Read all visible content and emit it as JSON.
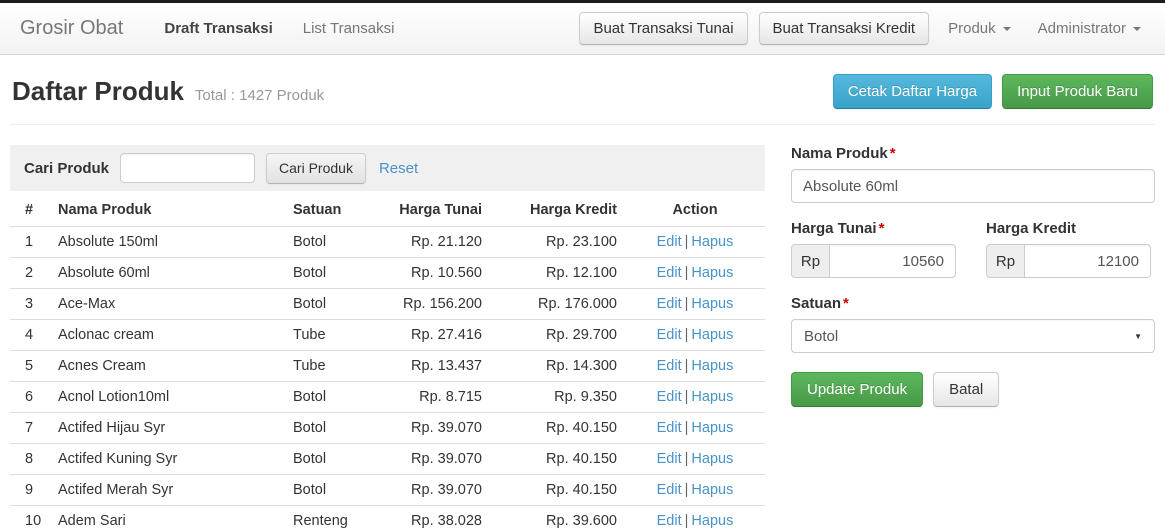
{
  "navbar": {
    "brand": "Grosir Obat",
    "items": [
      {
        "label": "Draft Transaksi",
        "active": true
      },
      {
        "label": "List Transaksi",
        "active": false
      }
    ],
    "buttons": [
      "Buat Transaksi Tunai",
      "Buat Transaksi Kredit"
    ],
    "dropdowns": [
      "Produk",
      "Administrator"
    ]
  },
  "page_header": {
    "title": "Daftar Produk",
    "subtitle": "Total : 1427 Produk",
    "print_button": "Cetak Daftar Harga",
    "new_button": "Input Produk Baru"
  },
  "search": {
    "label": "Cari Produk",
    "input_value": "",
    "button": "Cari Produk",
    "reset_link": "Reset"
  },
  "table": {
    "headers": [
      "#",
      "Nama Produk",
      "Satuan",
      "Harga Tunai",
      "Harga Kredit",
      "Action"
    ],
    "action_edit": "Edit",
    "action_separator": "|",
    "action_delete": "Hapus",
    "rows": [
      {
        "no": "1",
        "nama": "Absolute 150ml",
        "satuan": "Botol",
        "tunai": "Rp. 21.120",
        "kredit": "Rp. 23.100"
      },
      {
        "no": "2",
        "nama": "Absolute 60ml",
        "satuan": "Botol",
        "tunai": "Rp. 10.560",
        "kredit": "Rp. 12.100"
      },
      {
        "no": "3",
        "nama": "Ace-Max",
        "satuan": "Botol",
        "tunai": "Rp. 156.200",
        "kredit": "Rp. 176.000"
      },
      {
        "no": "4",
        "nama": "Aclonac cream",
        "satuan": "Tube",
        "tunai": "Rp. 27.416",
        "kredit": "Rp. 29.700"
      },
      {
        "no": "5",
        "nama": "Acnes Cream",
        "satuan": "Tube",
        "tunai": "Rp. 13.437",
        "kredit": "Rp. 14.300"
      },
      {
        "no": "6",
        "nama": "Acnol Lotion10ml",
        "satuan": "Botol",
        "tunai": "Rp. 8.715",
        "kredit": "Rp. 9.350"
      },
      {
        "no": "7",
        "nama": "Actifed Hijau Syr",
        "satuan": "Botol",
        "tunai": "Rp. 39.070",
        "kredit": "Rp. 40.150"
      },
      {
        "no": "8",
        "nama": "Actifed Kuning Syr",
        "satuan": "Botol",
        "tunai": "Rp. 39.070",
        "kredit": "Rp. 40.150"
      },
      {
        "no": "9",
        "nama": "Actifed Merah Syr",
        "satuan": "Botol",
        "tunai": "Rp. 39.070",
        "kredit": "Rp. 40.150"
      },
      {
        "no": "10",
        "nama": "Adem Sari",
        "satuan": "Renteng",
        "tunai": "Rp. 38.028",
        "kredit": "Rp. 39.600"
      }
    ]
  },
  "form": {
    "required_marker": "*",
    "nama_label": "Nama Produk",
    "nama_value": "Absolute 60ml",
    "tunai_label": "Harga Tunai",
    "tunai_prefix": "Rp",
    "tunai_value": "10560",
    "kredit_label": "Harga Kredit",
    "kredit_prefix": "Rp",
    "kredit_value": "12100",
    "satuan_label": "Satuan",
    "satuan_value": "Botol",
    "update_button": "Update Produk",
    "cancel_button": "Batal"
  },
  "icons": {
    "caret_down": "▼"
  },
  "colors": {
    "info_button": "#45aed4",
    "success_button": "#52a952",
    "link": "#4793c9",
    "required": "#cc0000",
    "top_strip": "#1c1c1c"
  }
}
